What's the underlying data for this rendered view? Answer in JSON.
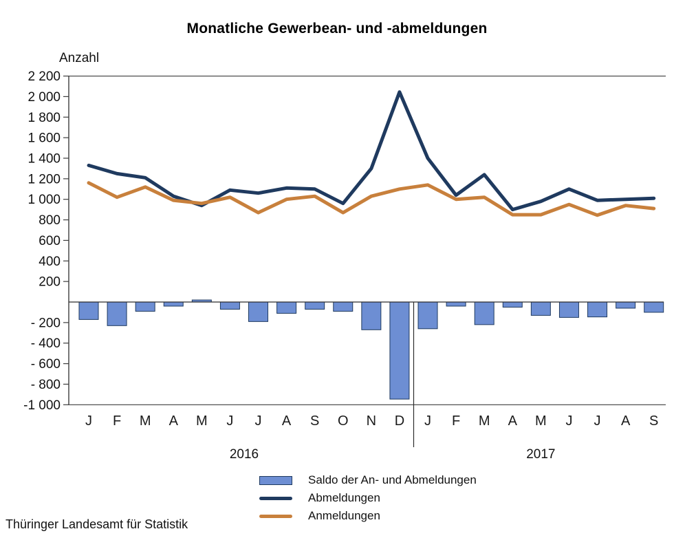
{
  "footer": "Thüringer Landesamt für Statistik",
  "chart_data": {
    "type": "combo",
    "title": "Monatliche Gewerbean- und -abmeldungen",
    "ylabel": "Anzahl",
    "categories": [
      "J",
      "F",
      "M",
      "A",
      "M",
      "J",
      "J",
      "A",
      "S",
      "O",
      "N",
      "D",
      "J",
      "F",
      "M",
      "A",
      "M",
      "J",
      "J",
      "A",
      "S"
    ],
    "year_groups": [
      {
        "label": "2016",
        "start": 0,
        "count": 12
      },
      {
        "label": "2017",
        "start": 12,
        "count": 9
      }
    ],
    "ylim": [
      -1000,
      2200
    ],
    "y_tick_step": 200,
    "y_ticks": [
      {
        "value": 2200,
        "label": "2 200"
      },
      {
        "value": 2000,
        "label": "2 000"
      },
      {
        "value": 1800,
        "label": "1 800"
      },
      {
        "value": 1600,
        "label": "1 600"
      },
      {
        "value": 1400,
        "label": "1 400"
      },
      {
        "value": 1200,
        "label": "1 200"
      },
      {
        "value": 1000,
        "label": "1 000"
      },
      {
        "value": 800,
        "label": "800"
      },
      {
        "value": 600,
        "label": "600"
      },
      {
        "value": 400,
        "label": "400"
      },
      {
        "value": 200,
        "label": "200"
      },
      {
        "value": -200,
        "label": "- 200"
      },
      {
        "value": -400,
        "label": "- 400"
      },
      {
        "value": -600,
        "label": "- 600"
      },
      {
        "value": -800,
        "label": "- 800"
      },
      {
        "value": -1000,
        "label": "-1 000"
      }
    ],
    "series": [
      {
        "name": "Saldo der An- und Abmeldungen",
        "type": "bar",
        "color": "#6d8ed3",
        "border_color": "#1f3a5f",
        "values": [
          -170,
          -230,
          -90,
          -40,
          20,
          -70,
          -190,
          -110,
          -70,
          -90,
          -270,
          -945,
          -260,
          -40,
          -220,
          -50,
          -130,
          -150,
          -145,
          -60,
          -100
        ]
      },
      {
        "name": "Abmeldungen",
        "type": "line",
        "color": "#1f3a5f",
        "values": [
          1330,
          1250,
          1210,
          1030,
          940,
          1090,
          1060,
          1110,
          1100,
          960,
          1300,
          2045,
          1400,
          1040,
          1240,
          900,
          980,
          1100,
          990,
          1000,
          1010
        ]
      },
      {
        "name": "Anmeldungen",
        "type": "line",
        "color": "#c8803c",
        "values": [
          1160,
          1020,
          1120,
          990,
          960,
          1020,
          870,
          1000,
          1030,
          870,
          1030,
          1100,
          1140,
          1000,
          1020,
          850,
          850,
          950,
          845,
          940,
          910
        ]
      }
    ],
    "grid": false,
    "legend_position": "bottom"
  }
}
